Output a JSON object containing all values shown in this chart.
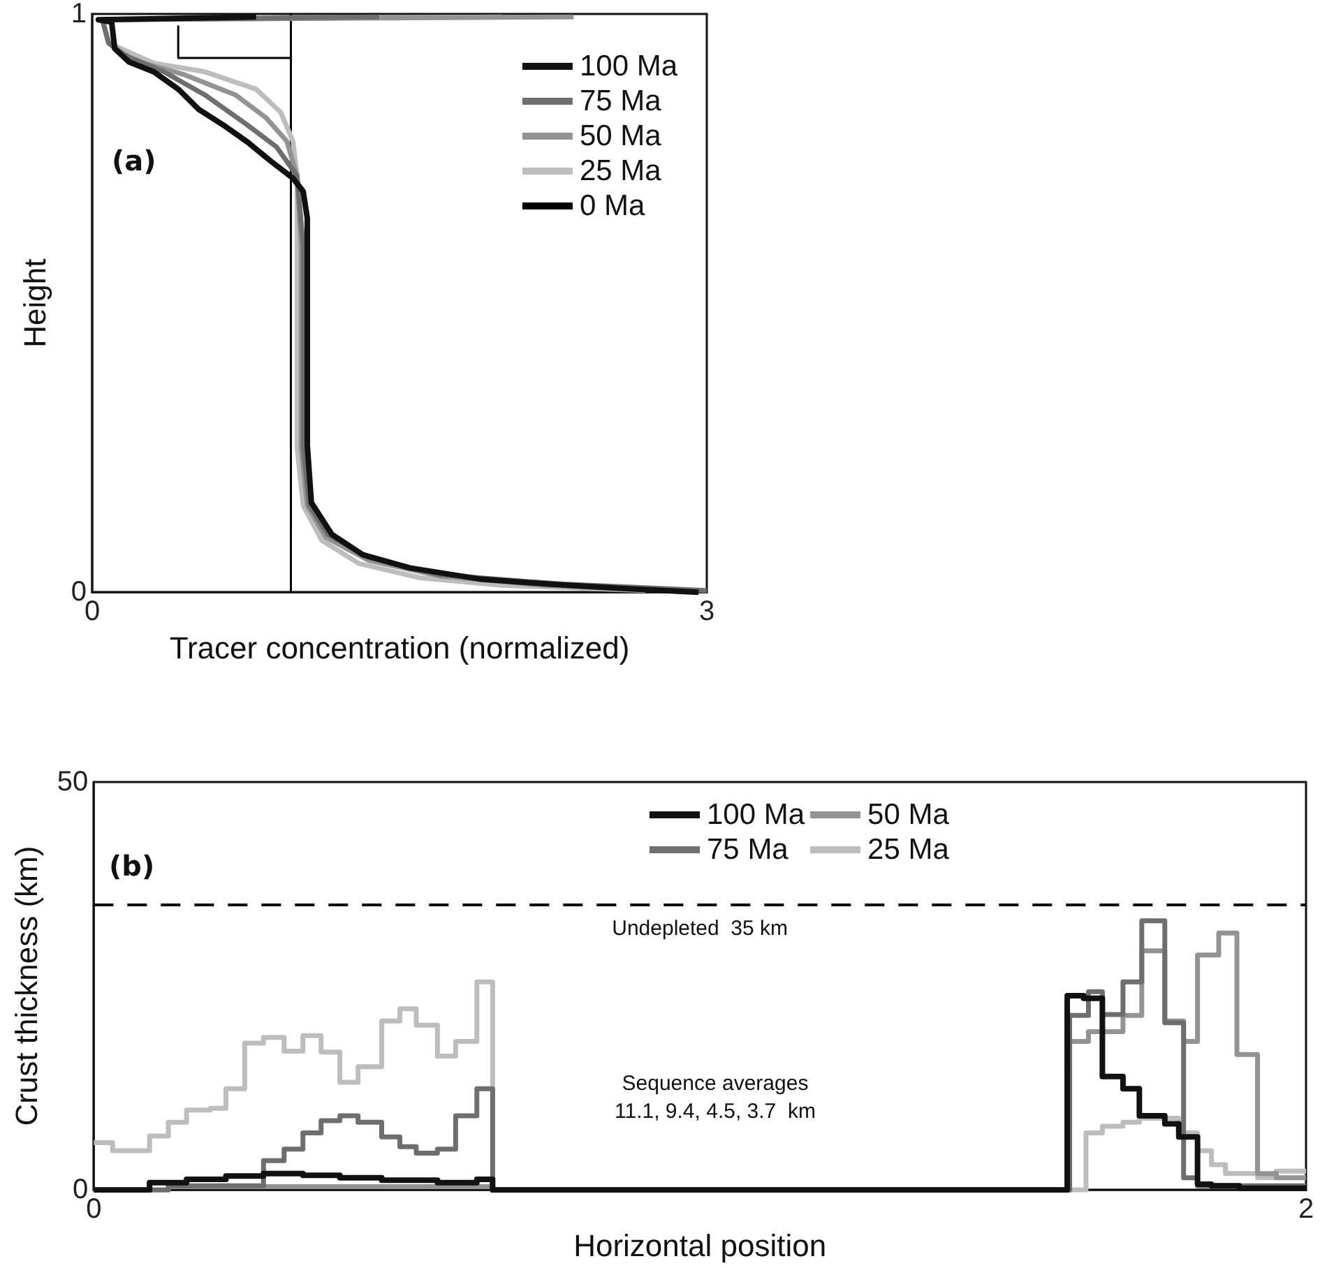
{
  "chart_data": [
    {
      "type": "line",
      "xlabel": "Tracer concentration (normalized)",
      "ylabel": "Height",
      "annotations": [
        "(a)"
      ],
      "xlim": [
        0,
        3
      ],
      "xticks": [
        0,
        3
      ],
      "ylim": [
        0,
        1
      ],
      "yticks": [
        0,
        1
      ],
      "grid": false,
      "legend": "top right",
      "series": [
        {
          "name": "100 Ma",
          "color": "#111111",
          "x": [
            0.8,
            0.03,
            0.095,
            0.11,
            0.18,
            0.3,
            0.42,
            0.52,
            0.64,
            0.76,
            0.87,
            0.98,
            1.03,
            1.05,
            1.05,
            1.07,
            1.17,
            1.32,
            1.55,
            1.89,
            2.23,
            2.57,
            2.96
          ],
          "values": [
            0.995,
            0.99,
            0.986,
            0.94,
            0.917,
            0.9,
            0.87,
            0.835,
            0.808,
            0.778,
            0.746,
            0.716,
            0.693,
            0.647,
            0.254,
            0.155,
            0.1,
            0.065,
            0.042,
            0.023,
            0.014,
            0.007,
            0.0
          ]
        },
        {
          "name": "75 Ma",
          "color": "#6e6e6e",
          "x": [
            1.4,
            0.05,
            0.08,
            0.15,
            0.35,
            0.55,
            0.75,
            0.9,
            1.0,
            1.03,
            1.03,
            1.06,
            1.15,
            1.35,
            1.7,
            2.3,
            3.0
          ],
          "values": [
            0.995,
            0.99,
            0.95,
            0.93,
            0.9,
            0.86,
            0.81,
            0.77,
            0.72,
            0.6,
            0.25,
            0.15,
            0.1,
            0.06,
            0.03,
            0.014,
            0.003
          ]
        },
        {
          "name": "50 Ma",
          "color": "#939393",
          "x": [
            2.35,
            0.05,
            0.08,
            0.2,
            0.45,
            0.7,
            0.85,
            0.95,
            1.0,
            1.02,
            1.02,
            1.05,
            1.14,
            1.35,
            1.7,
            2.2,
            2.9
          ],
          "values": [
            0.995,
            0.99,
            0.95,
            0.92,
            0.895,
            0.86,
            0.82,
            0.78,
            0.72,
            0.6,
            0.25,
            0.15,
            0.095,
            0.055,
            0.028,
            0.012,
            0.002
          ]
        },
        {
          "name": "25 Ma",
          "color": "#bdbdbd",
          "x": [
            2.0,
            0.05,
            0.08,
            0.3,
            0.55,
            0.8,
            0.92,
            0.98,
            1.0,
            1.0,
            1.0,
            1.03,
            1.12,
            1.3,
            1.6,
            2.0,
            2.7
          ],
          "values": [
            0.995,
            0.99,
            0.95,
            0.915,
            0.9,
            0.87,
            0.83,
            0.78,
            0.72,
            0.6,
            0.25,
            0.15,
            0.09,
            0.05,
            0.025,
            0.012,
            0.003
          ]
        },
        {
          "name": "0 Ma",
          "color": "#000000",
          "x": [
            0.42,
            0.42,
            0.97,
            0.97,
            0.97
          ],
          "values": [
            0.98,
            0.924,
            0.924,
            1,
            0
          ]
        }
      ]
    },
    {
      "type": "step",
      "xlabel": "Horizontal position",
      "ylabel": "Crust thickness (km)",
      "annotations": [
        "(b)",
        "Sequence averages\n11.1, 9.4, 4.5, 3.7  km"
      ],
      "xlim": [
        0,
        2
      ],
      "xticks": [
        0,
        2
      ],
      "ylim": [
        0,
        50
      ],
      "yticks": [
        0,
        50
      ],
      "grid": false,
      "legend": "top",
      "ref_lines": [
        {
          "axis": "y",
          "value": 35,
          "label": "Undepleted  35 km",
          "color": "#000000",
          "line_style": "dashed"
        }
      ],
      "series": [
        {
          "name": "100 Ma",
          "color": "#111111",
          "x": [
            0,
            0.092,
            0.153,
            0.218,
            0.28,
            0.345,
            0.406,
            0.475,
            0.567,
            0.632,
            0.658,
            1.606,
            1.633,
            1.664,
            1.698,
            1.725,
            1.767,
            1.79,
            1.821,
            1.844,
            1.89,
            2.0
          ],
          "values": [
            0,
            0.9,
            1.3,
            1.7,
            2.0,
            1.8,
            1.5,
            1.2,
            0.9,
            1.3,
            0,
            23.8,
            23.5,
            13.9,
            12.4,
            9.1,
            8.1,
            6.5,
            0.7,
            0.5,
            0.2,
            0.2
          ]
        },
        {
          "name": "75 Ma",
          "color": "#6e6e6e",
          "x": [
            0,
            0.123,
            0.28,
            0.314,
            0.345,
            0.375,
            0.406,
            0.436,
            0.475,
            0.505,
            0.532,
            0.567,
            0.597,
            0.632,
            0.658,
            1.61,
            1.641,
            1.664,
            1.698,
            1.729,
            1.767,
            1.798,
            1.821,
            2.0
          ],
          "values": [
            0,
            0.5,
            3.6,
            5.0,
            7.0,
            8.5,
            9.1,
            8.3,
            6.5,
            5.3,
            4.5,
            5.0,
            9.1,
            12.4,
            0,
            21.4,
            24.3,
            21.5,
            25.5,
            33,
            20.5,
            1.5,
            0.5,
            0.5
          ]
        },
        {
          "name": "50 Ma",
          "color": "#939393",
          "x": [
            0,
            0.123,
            0.658,
            1.61,
            1.641,
            1.698,
            1.729,
            1.767,
            1.798,
            1.821,
            1.856,
            1.886,
            1.92,
            1.951,
            2.0
          ],
          "values": [
            0,
            0.4,
            0,
            18.2,
            19.4,
            21.4,
            29.3,
            20.7,
            18.2,
            28.8,
            31.5,
            16.6,
            2.0,
            1.5,
            1.5
          ]
        },
        {
          "name": "25 Ma",
          "color": "#bdbdbd",
          "x": [
            0,
            0.031,
            0.092,
            0.123,
            0.153,
            0.192,
            0.218,
            0.249,
            0.28,
            0.314,
            0.345,
            0.375,
            0.406,
            0.436,
            0.475,
            0.505,
            0.532,
            0.567,
            0.597,
            0.632,
            0.658,
            1.637,
            1.664,
            1.698,
            1.725,
            1.79,
            1.821,
            1.844,
            1.867,
            1.92,
            1.951,
            2.0
          ],
          "values": [
            5.8,
            4.8,
            6.6,
            8.3,
            9.8,
            10.0,
            12.4,
            18.0,
            18.7,
            17.0,
            18.9,
            16.9,
            13.2,
            15.1,
            20.7,
            22.2,
            20.2,
            16.4,
            18.2,
            25.5,
            0,
            7.0,
            7.8,
            8.3,
            8.8,
            7.0,
            4.8,
            3.1,
            2.0,
            1.5,
            2.3,
            2.3
          ]
        }
      ]
    }
  ]
}
